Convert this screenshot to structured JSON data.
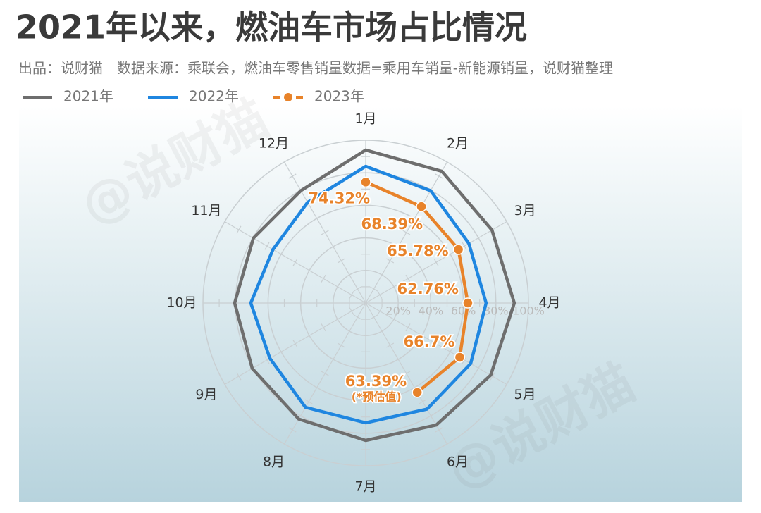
{
  "chart_data": {
    "type": "radar",
    "title": "2021年以来，燃油车市场占比情况",
    "subtitle": "出品：说财猫　数据来源：乘联会，燃油车零售销量数据=乘用车销量-新能源销量，说财猫整理",
    "categories": [
      "1月",
      "2月",
      "3月",
      "4月",
      "5月",
      "6月",
      "7月",
      "8月",
      "9月",
      "10月",
      "11月",
      "12月"
    ],
    "rlim": [
      0,
      100
    ],
    "rticks": [
      {
        "value": 20,
        "label": "20%"
      },
      {
        "value": 40,
        "label": "40%"
      },
      {
        "value": 60,
        "label": "60%"
      },
      {
        "value": 80,
        "label": "80%"
      },
      {
        "value": 100,
        "label": "100%"
      }
    ],
    "series": [
      {
        "name": "2021年",
        "color": "#6e6e6e",
        "values": [
          94,
          93.5,
          89.6,
          91.3,
          88.7,
          86.6,
          84.4,
          82.3,
          80.5,
          80.5,
          79.7,
          79.7
        ]
      },
      {
        "name": "2022年",
        "color": "#1f86e0",
        "values": [
          84,
          79.7,
          73.2,
          74,
          74.5,
          75.3,
          73.6,
          74,
          68,
          70.6,
          65.8,
          71.4
        ]
      },
      {
        "name": "2023年",
        "color": "#e8832a",
        "marker": "circle",
        "values": [
          74.32,
          68.39,
          65.78,
          62.76,
          66.7,
          63.39,
          null,
          null,
          null,
          null,
          null,
          null
        ],
        "value_labels": [
          "74.32%",
          "68.39%",
          "65.78%",
          "62.76%",
          "66.7%",
          "63.39%",
          null,
          null,
          null,
          null,
          null,
          null
        ]
      }
    ],
    "annotation": "(*预估值)",
    "watermarks": [
      "@说财猫",
      "@说财猫"
    ]
  }
}
